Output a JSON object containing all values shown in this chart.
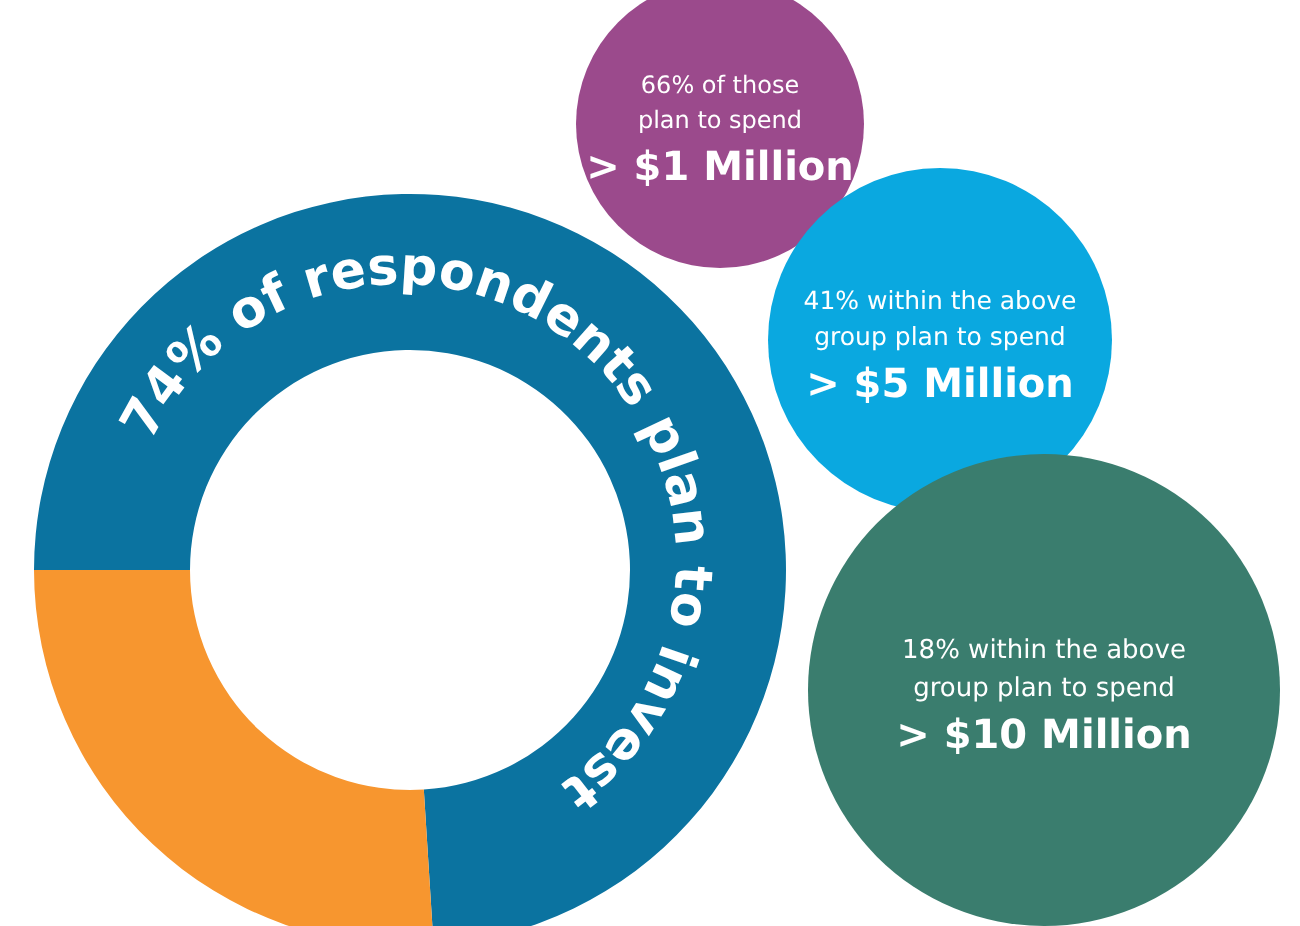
{
  "chart_data": [
    {
      "type": "donut",
      "categories": [
        null,
        null
      ],
      "values": [
        74,
        26
      ],
      "colors": [
        "#0b73a0",
        "#f7962f"
      ],
      "annotations": [
        "74% of respondents plan to invest"
      ]
    },
    {
      "type": "other",
      "colors": [
        "#9b4a8c",
        "#0aa8e0",
        "#3a7d6e"
      ],
      "annotations": [
        "66% of those\nplan to spend",
        "> $1 Million",
        "41% within the above\ngroup plan to spend",
        "> $5 Million",
        "18% within the above\ngroup plan to spend",
        "> $10 Million"
      ]
    }
  ]
}
